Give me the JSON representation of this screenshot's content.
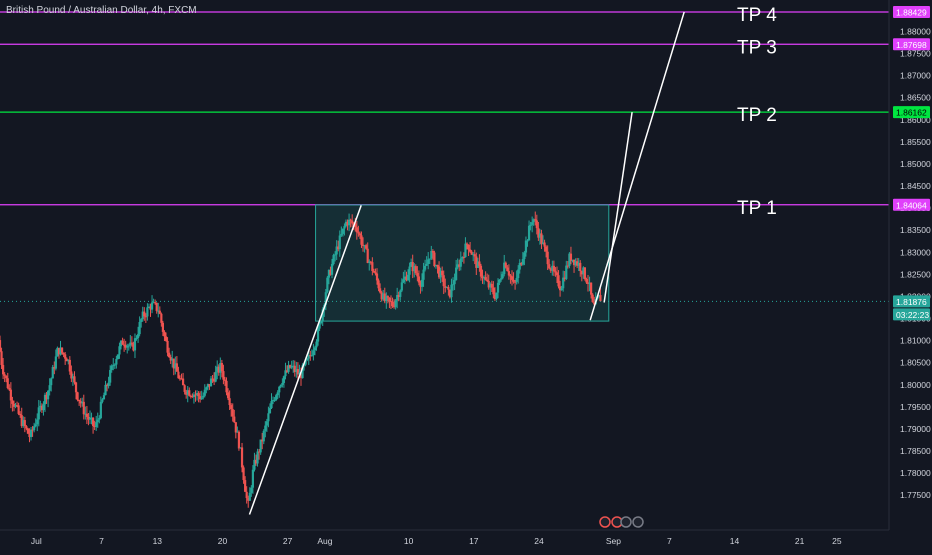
{
  "chart_title": "British Pound / Australian Dollar, 4h, FXCM",
  "chart_data": {
    "type": "candlestick",
    "symbol": "British Pound / Australian Dollar",
    "interval": "4h",
    "source": "FXCM",
    "ylim": [
      1.767,
      1.887
    ],
    "y_ticks": [
      "1.77500",
      "1.78000",
      "1.78500",
      "1.79000",
      "1.79500",
      "1.80000",
      "1.80500",
      "1.81000",
      "1.81500",
      "1.82000",
      "1.82500",
      "1.83000",
      "1.83500",
      "1.84000",
      "1.84500",
      "1.85000",
      "1.85500",
      "1.86000",
      "1.86500",
      "1.87000",
      "1.87500",
      "1.88000"
    ],
    "x_ticks": [
      {
        "label": "Jul",
        "day": 0
      },
      {
        "label": "7",
        "day": 7
      },
      {
        "label": "13",
        "day": 13
      },
      {
        "label": "20",
        "day": 20
      },
      {
        "label": "27",
        "day": 27
      },
      {
        "label": "Aug",
        "day": 31
      },
      {
        "label": "10",
        "day": 40
      },
      {
        "label": "17",
        "day": 47
      },
      {
        "label": "24",
        "day": 54
      },
      {
        "label": "Sep",
        "day": 62
      },
      {
        "label": "7",
        "day": 68
      },
      {
        "label": "14",
        "day": 75
      },
      {
        "label": "21",
        "day": 82
      },
      {
        "label": "25",
        "day": 86
      }
    ],
    "xlim": [
      -3.9,
      91.6
    ],
    "current_price": {
      "value": 1.81876,
      "label": "1.81876",
      "countdown": "03:22:23"
    },
    "levels": [
      {
        "name": "TP 4",
        "value": 1.88429,
        "label": "1.88429",
        "color": "#e040fb"
      },
      {
        "name": "TP 3",
        "value": 1.87698,
        "label": "1.87698",
        "color": "#e040fb"
      },
      {
        "name": "TP 2",
        "value": 1.86162,
        "label": "1.86162",
        "color": "#00e640"
      },
      {
        "name": "TP 1",
        "value": 1.84064,
        "label": "1.84064",
        "color": "#e040fb"
      }
    ],
    "range_box": {
      "x_start": 30,
      "x_end": 61.5,
      "y_low": 1.8143,
      "y_high": 1.8406,
      "color": "#26a69a"
    },
    "trend_lines": [
      {
        "x1": 22.9,
        "y1": 1.7705,
        "x2": 34.9,
        "y2": 1.8405
      },
      {
        "x1": 59.5,
        "y1": 1.8145,
        "x2": 69.6,
        "y2": 1.8843
      },
      {
        "x1": 61.0,
        "y1": 1.8185,
        "x2": 64.0,
        "y2": 1.8616
      }
    ],
    "anchors": [
      [
        -3.9,
        1.81
      ],
      [
        -3.5,
        1.804
      ],
      [
        -2.5,
        1.797
      ],
      [
        -1.5,
        1.792
      ],
      [
        -0.5,
        1.788
      ],
      [
        0.5,
        1.794
      ],
      [
        1.5,
        1.799
      ],
      [
        2.5,
        1.808
      ],
      [
        3.5,
        1.806
      ],
      [
        4.5,
        1.798
      ],
      [
        5.5,
        1.793
      ],
      [
        6.5,
        1.79
      ],
      [
        7.5,
        1.798
      ],
      [
        8.5,
        1.805
      ],
      [
        9.5,
        1.81
      ],
      [
        10.5,
        1.808
      ],
      [
        11.5,
        1.815
      ],
      [
        12.5,
        1.818
      ],
      [
        13.3,
        1.817
      ],
      [
        14.0,
        1.81
      ],
      [
        15.0,
        1.804
      ],
      [
        16.0,
        1.799
      ],
      [
        17.0,
        1.798
      ],
      [
        18.0,
        1.797
      ],
      [
        19.0,
        1.801
      ],
      [
        20.0,
        1.804
      ],
      [
        21.0,
        1.796
      ],
      [
        22.0,
        1.786
      ],
      [
        22.9,
        1.772
      ],
      [
        23.5,
        1.781
      ],
      [
        24.5,
        1.788
      ],
      [
        25.5,
        1.796
      ],
      [
        26.5,
        1.801
      ],
      [
        27.5,
        1.804
      ],
      [
        28.5,
        1.802
      ],
      [
        29.5,
        1.806
      ],
      [
        30.5,
        1.812
      ],
      [
        31.5,
        1.824
      ],
      [
        32.5,
        1.831
      ],
      [
        33.5,
        1.837
      ],
      [
        34.5,
        1.836
      ],
      [
        35.5,
        1.83
      ],
      [
        36.5,
        1.825
      ],
      [
        37.5,
        1.819
      ],
      [
        38.5,
        1.818
      ],
      [
        39.5,
        1.823
      ],
      [
        40.5,
        1.827
      ],
      [
        41.5,
        1.823
      ],
      [
        42.5,
        1.83
      ],
      [
        43.5,
        1.825
      ],
      [
        44.5,
        1.82
      ],
      [
        45.5,
        1.827
      ],
      [
        46.5,
        1.832
      ],
      [
        47.5,
        1.827
      ],
      [
        48.5,
        1.823
      ],
      [
        49.5,
        1.82
      ],
      [
        50.5,
        1.828
      ],
      [
        51.5,
        1.822
      ],
      [
        52.5,
        1.83
      ],
      [
        53.5,
        1.838
      ],
      [
        54.5,
        1.832
      ],
      [
        55.5,
        1.826
      ],
      [
        56.5,
        1.822
      ],
      [
        57.5,
        1.829
      ],
      [
        58.5,
        1.827
      ],
      [
        59.5,
        1.823
      ],
      [
        60.0,
        1.817
      ],
      [
        60.6,
        1.8195
      ]
    ],
    "tick_labels_shown": true,
    "grid": false,
    "legend": "none"
  },
  "colors": {
    "background": "#131722",
    "up_candle": "#26a69a",
    "down_candle": "#ef5350",
    "axis_text": "#d1d4dc",
    "current_price_line": "#26a69a"
  }
}
